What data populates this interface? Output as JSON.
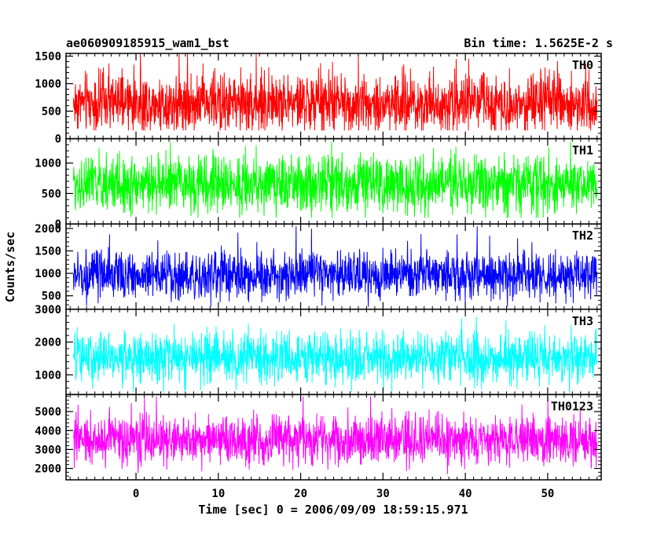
{
  "title_left": "ae060909185915_wam1_bst",
  "title_right": "Bin time: 1.5625E-2 s",
  "ylabel": "Counts/sec",
  "xlabel": "Time [sec] 0 = 2006/09/09 18:59:15.971",
  "colors": {
    "axis": "#000000",
    "th0": "#ff0000",
    "th1": "#00ff00",
    "th2": "#0000ff",
    "th3": "#00ffff",
    "th0123": "#ff00ff"
  },
  "chart_data": {
    "type": "line",
    "x_range": [
      -8.5,
      56.5
    ],
    "data_x_range": [
      -7.6,
      56
    ],
    "x_ticks": [
      0,
      10,
      20,
      30,
      40,
      50
    ],
    "x_tick_labels": [
      "0",
      "10",
      "20",
      "30",
      "40",
      "50"
    ],
    "panels": [
      {
        "name": "TH0",
        "color": "#ff0000",
        "ylim": [
          0,
          1550
        ],
        "yticks": [
          0,
          500,
          1000,
          1500
        ],
        "mean": 650,
        "min": 150,
        "max": 1550,
        "spread": 260
      },
      {
        "name": "TH1",
        "color": "#00ff00",
        "ylim": [
          0,
          1400
        ],
        "yticks": [
          0,
          500,
          1000
        ],
        "mean": 650,
        "min": 100,
        "max": 1350,
        "spread": 230
      },
      {
        "name": "TH2",
        "color": "#0000ff",
        "ylim": [
          200,
          2100
        ],
        "yticks": [
          500,
          1000,
          1500,
          2000
        ],
        "mean": 950,
        "min": 250,
        "max": 2050,
        "spread": 260
      },
      {
        "name": "TH3",
        "color": "#00ffff",
        "ylim": [
          400,
          3000
        ],
        "yticks": [
          1000,
          2000,
          3000
        ],
        "mean": 1500,
        "min": 450,
        "max": 2800,
        "spread": 380
      },
      {
        "name": "TH0123",
        "color": "#ff00ff",
        "ylim": [
          1400,
          5900
        ],
        "yticks": [
          2000,
          3000,
          4000,
          5000
        ],
        "mean": 3500,
        "min": 1500,
        "max": 5800,
        "spread": 650
      }
    ]
  }
}
